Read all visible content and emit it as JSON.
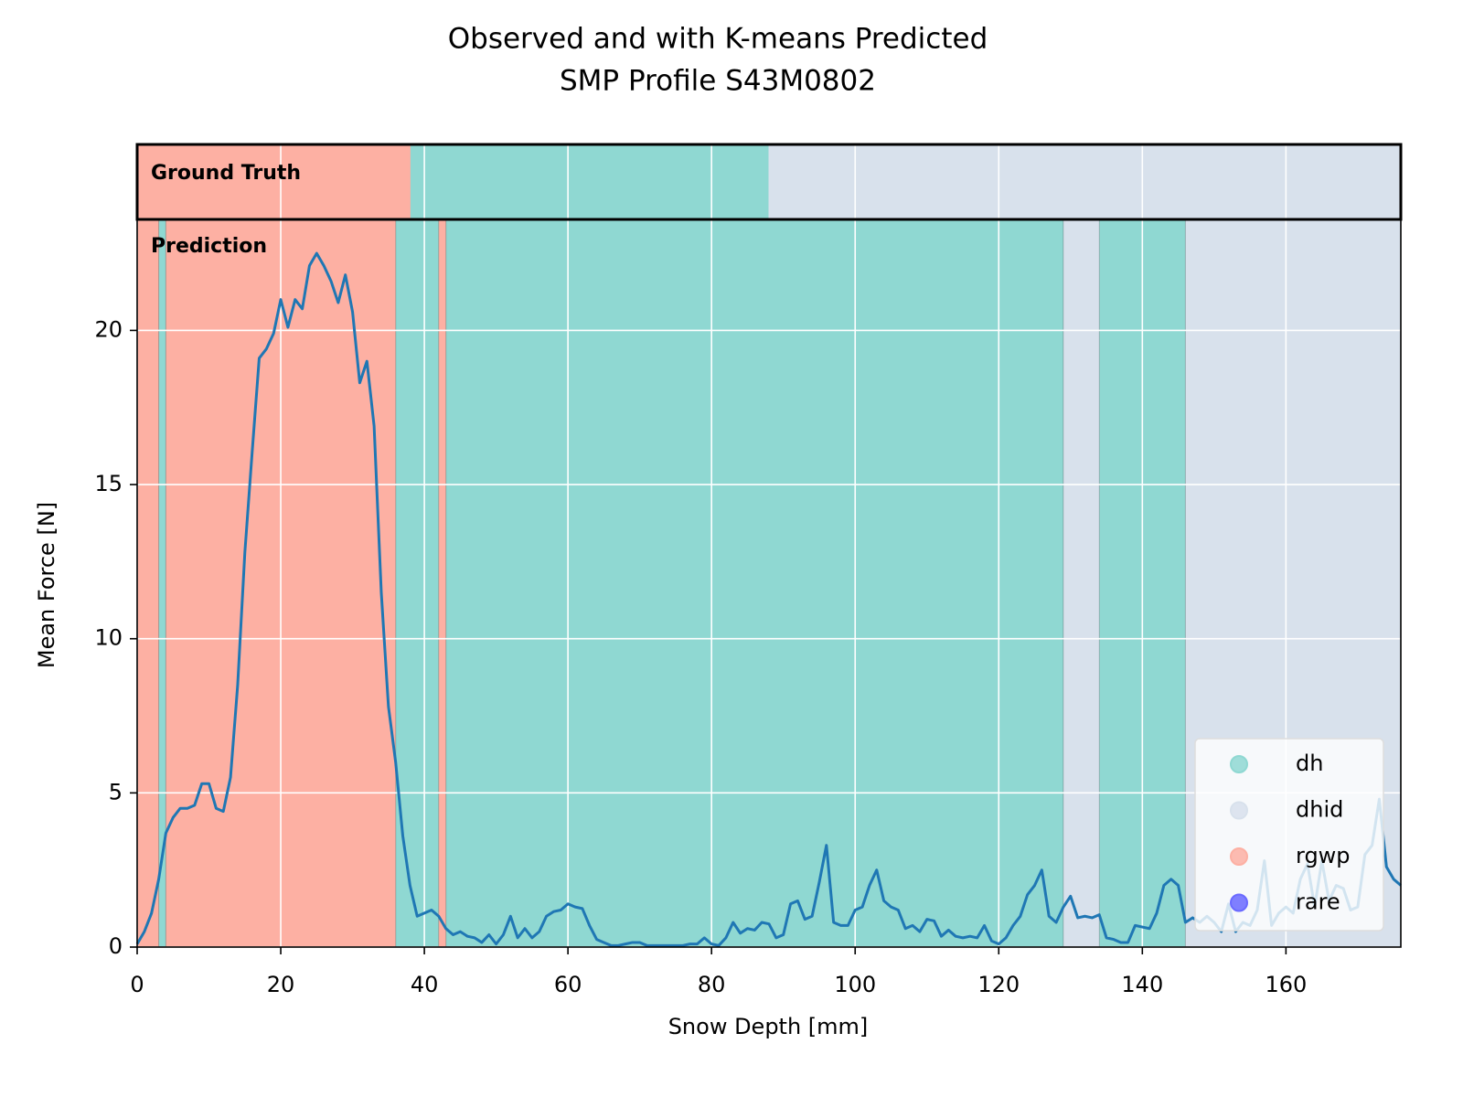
{
  "chart_data": {
    "type": "line",
    "title": "Observed and with K-means Predicted",
    "subtitle": "SMP Profile S43M0802",
    "xlabel": "Snow Depth [mm]",
    "ylabel": "Mean Force [N]",
    "ground_truth_label": "Ground Truth",
    "prediction_label": "Prediction",
    "xlim": [
      0,
      176
    ],
    "xticks": [
      0,
      20,
      40,
      60,
      80,
      100,
      120,
      140,
      160
    ],
    "ylim": [
      0,
      23.6
    ],
    "yticks": [
      0,
      5,
      10,
      15,
      20
    ],
    "grid": true,
    "legend": "lower right",
    "x": [
      0,
      1,
      2,
      3,
      4,
      5,
      6,
      7,
      8,
      9,
      10,
      11,
      12,
      13,
      14,
      15,
      16,
      17,
      18,
      19,
      20,
      21,
      22,
      23,
      24,
      25,
      26,
      27,
      28,
      29,
      30,
      31,
      32,
      33,
      34,
      35,
      36,
      37,
      38,
      39,
      40,
      41,
      42,
      43,
      44,
      45,
      46,
      47,
      48,
      49,
      50,
      51,
      52,
      53,
      54,
      55,
      56,
      57,
      58,
      59,
      60,
      61,
      62,
      63,
      64,
      65,
      66,
      67,
      68,
      69,
      70,
      71,
      72,
      73,
      74,
      75,
      76,
      77,
      78,
      79,
      80,
      81,
      82,
      83,
      84,
      85,
      86,
      87,
      88,
      89,
      90,
      91,
      92,
      93,
      94,
      95,
      96,
      97,
      98,
      99,
      100,
      101,
      102,
      103,
      104,
      105,
      106,
      107,
      108,
      109,
      110,
      111,
      112,
      113,
      114,
      115,
      116,
      117,
      118,
      119,
      120,
      121,
      122,
      123,
      124,
      125,
      126,
      127,
      128,
      129,
      130,
      131,
      132,
      133,
      134,
      135,
      136,
      137,
      138,
      139,
      140,
      141,
      142,
      143,
      144,
      145,
      146,
      147,
      148,
      149,
      150,
      151,
      152,
      153,
      154,
      155,
      156,
      157,
      158,
      159,
      160,
      161,
      162,
      163,
      164,
      165,
      166,
      167,
      168,
      169,
      170,
      171,
      172,
      173,
      174,
      175,
      176
    ],
    "series": [
      {
        "color": "#1f77b4",
        "values": [
          0.1,
          0.5,
          1.1,
          2.2,
          3.7,
          4.2,
          4.5,
          4.5,
          4.6,
          5.3,
          5.3,
          4.5,
          4.4,
          5.5,
          8.5,
          12.8,
          16,
          19.1,
          19.4,
          19.9,
          21,
          20.1,
          21,
          20.7,
          22.1,
          22.5,
          22.1,
          21.6,
          20.9,
          21.8,
          20.6,
          18.3,
          19,
          16.9,
          11.5,
          7.8,
          6.0,
          3.6,
          2.0,
          1.0,
          1.1,
          1.2,
          1.0,
          0.6,
          0.4,
          0.5,
          0.35,
          0.3,
          0.15,
          0.4,
          0.1,
          0.4,
          1.0,
          0.3,
          0.6,
          0.3,
          0.5,
          1.0,
          1.15,
          1.2,
          1.4,
          1.3,
          1.25,
          0.7,
          0.25,
          0.15,
          0.05,
          0.05,
          0.1,
          0.15,
          0.15,
          0.05,
          0.05,
          0.05,
          0.05,
          0.05,
          0.05,
          0.1,
          0.1,
          0.3,
          0.1,
          0.05,
          0.3,
          0.8,
          0.45,
          0.6,
          0.55,
          0.8,
          0.75,
          0.3,
          0.4,
          1.4,
          1.5,
          0.9,
          1.0,
          2.1,
          3.3,
          0.8,
          0.7,
          0.7,
          1.2,
          1.3,
          2.0,
          2.5,
          1.5,
          1.3,
          1.2,
          0.6,
          0.7,
          0.5,
          0.9,
          0.85,
          0.35,
          0.55,
          0.35,
          0.3,
          0.35,
          0.3,
          0.7,
          0.2,
          0.1,
          0.3,
          0.7,
          1.0,
          1.7,
          2.0,
          2.5,
          1.0,
          0.8,
          1.3,
          1.65,
          0.95,
          1.0,
          0.95,
          1.05,
          0.3,
          0.25,
          0.15,
          0.15,
          0.7,
          0.65,
          0.6,
          1.1,
          2.0,
          2.2,
          2.0,
          0.8,
          0.95,
          0.8,
          1.0,
          0.8,
          0.5,
          1.4,
          0.5,
          0.8,
          0.7,
          1.2,
          2.8,
          0.7,
          1.1,
          1.3,
          1.1,
          2.2,
          2.7,
          1.3,
          2.8,
          1.5,
          2.0,
          1.9,
          1.2,
          1.3,
          3.0,
          3.3,
          4.8,
          2.6,
          2.2,
          2.0
        ]
      }
    ],
    "classes": [
      {
        "name": "dh",
        "color": "#8fd8d2",
        "ground_truth": [
          [
            38,
            88
          ]
        ],
        "prediction": [
          [
            3,
            4
          ],
          [
            36,
            42
          ],
          [
            43,
            129
          ],
          [
            134,
            146
          ]
        ]
      },
      {
        "name": "dhid",
        "color": "#d8e1ec",
        "ground_truth": [
          [
            88,
            176
          ]
        ],
        "prediction": [
          [
            129,
            134
          ],
          [
            146,
            176
          ]
        ]
      },
      {
        "name": "rgwp",
        "color": "#fdb0a3",
        "ground_truth": [
          [
            0,
            38
          ]
        ],
        "prediction": [
          [
            0,
            3
          ],
          [
            4,
            36
          ],
          [
            42,
            43
          ]
        ]
      },
      {
        "name": "rare",
        "color": "#6a6aff"
      }
    ]
  }
}
